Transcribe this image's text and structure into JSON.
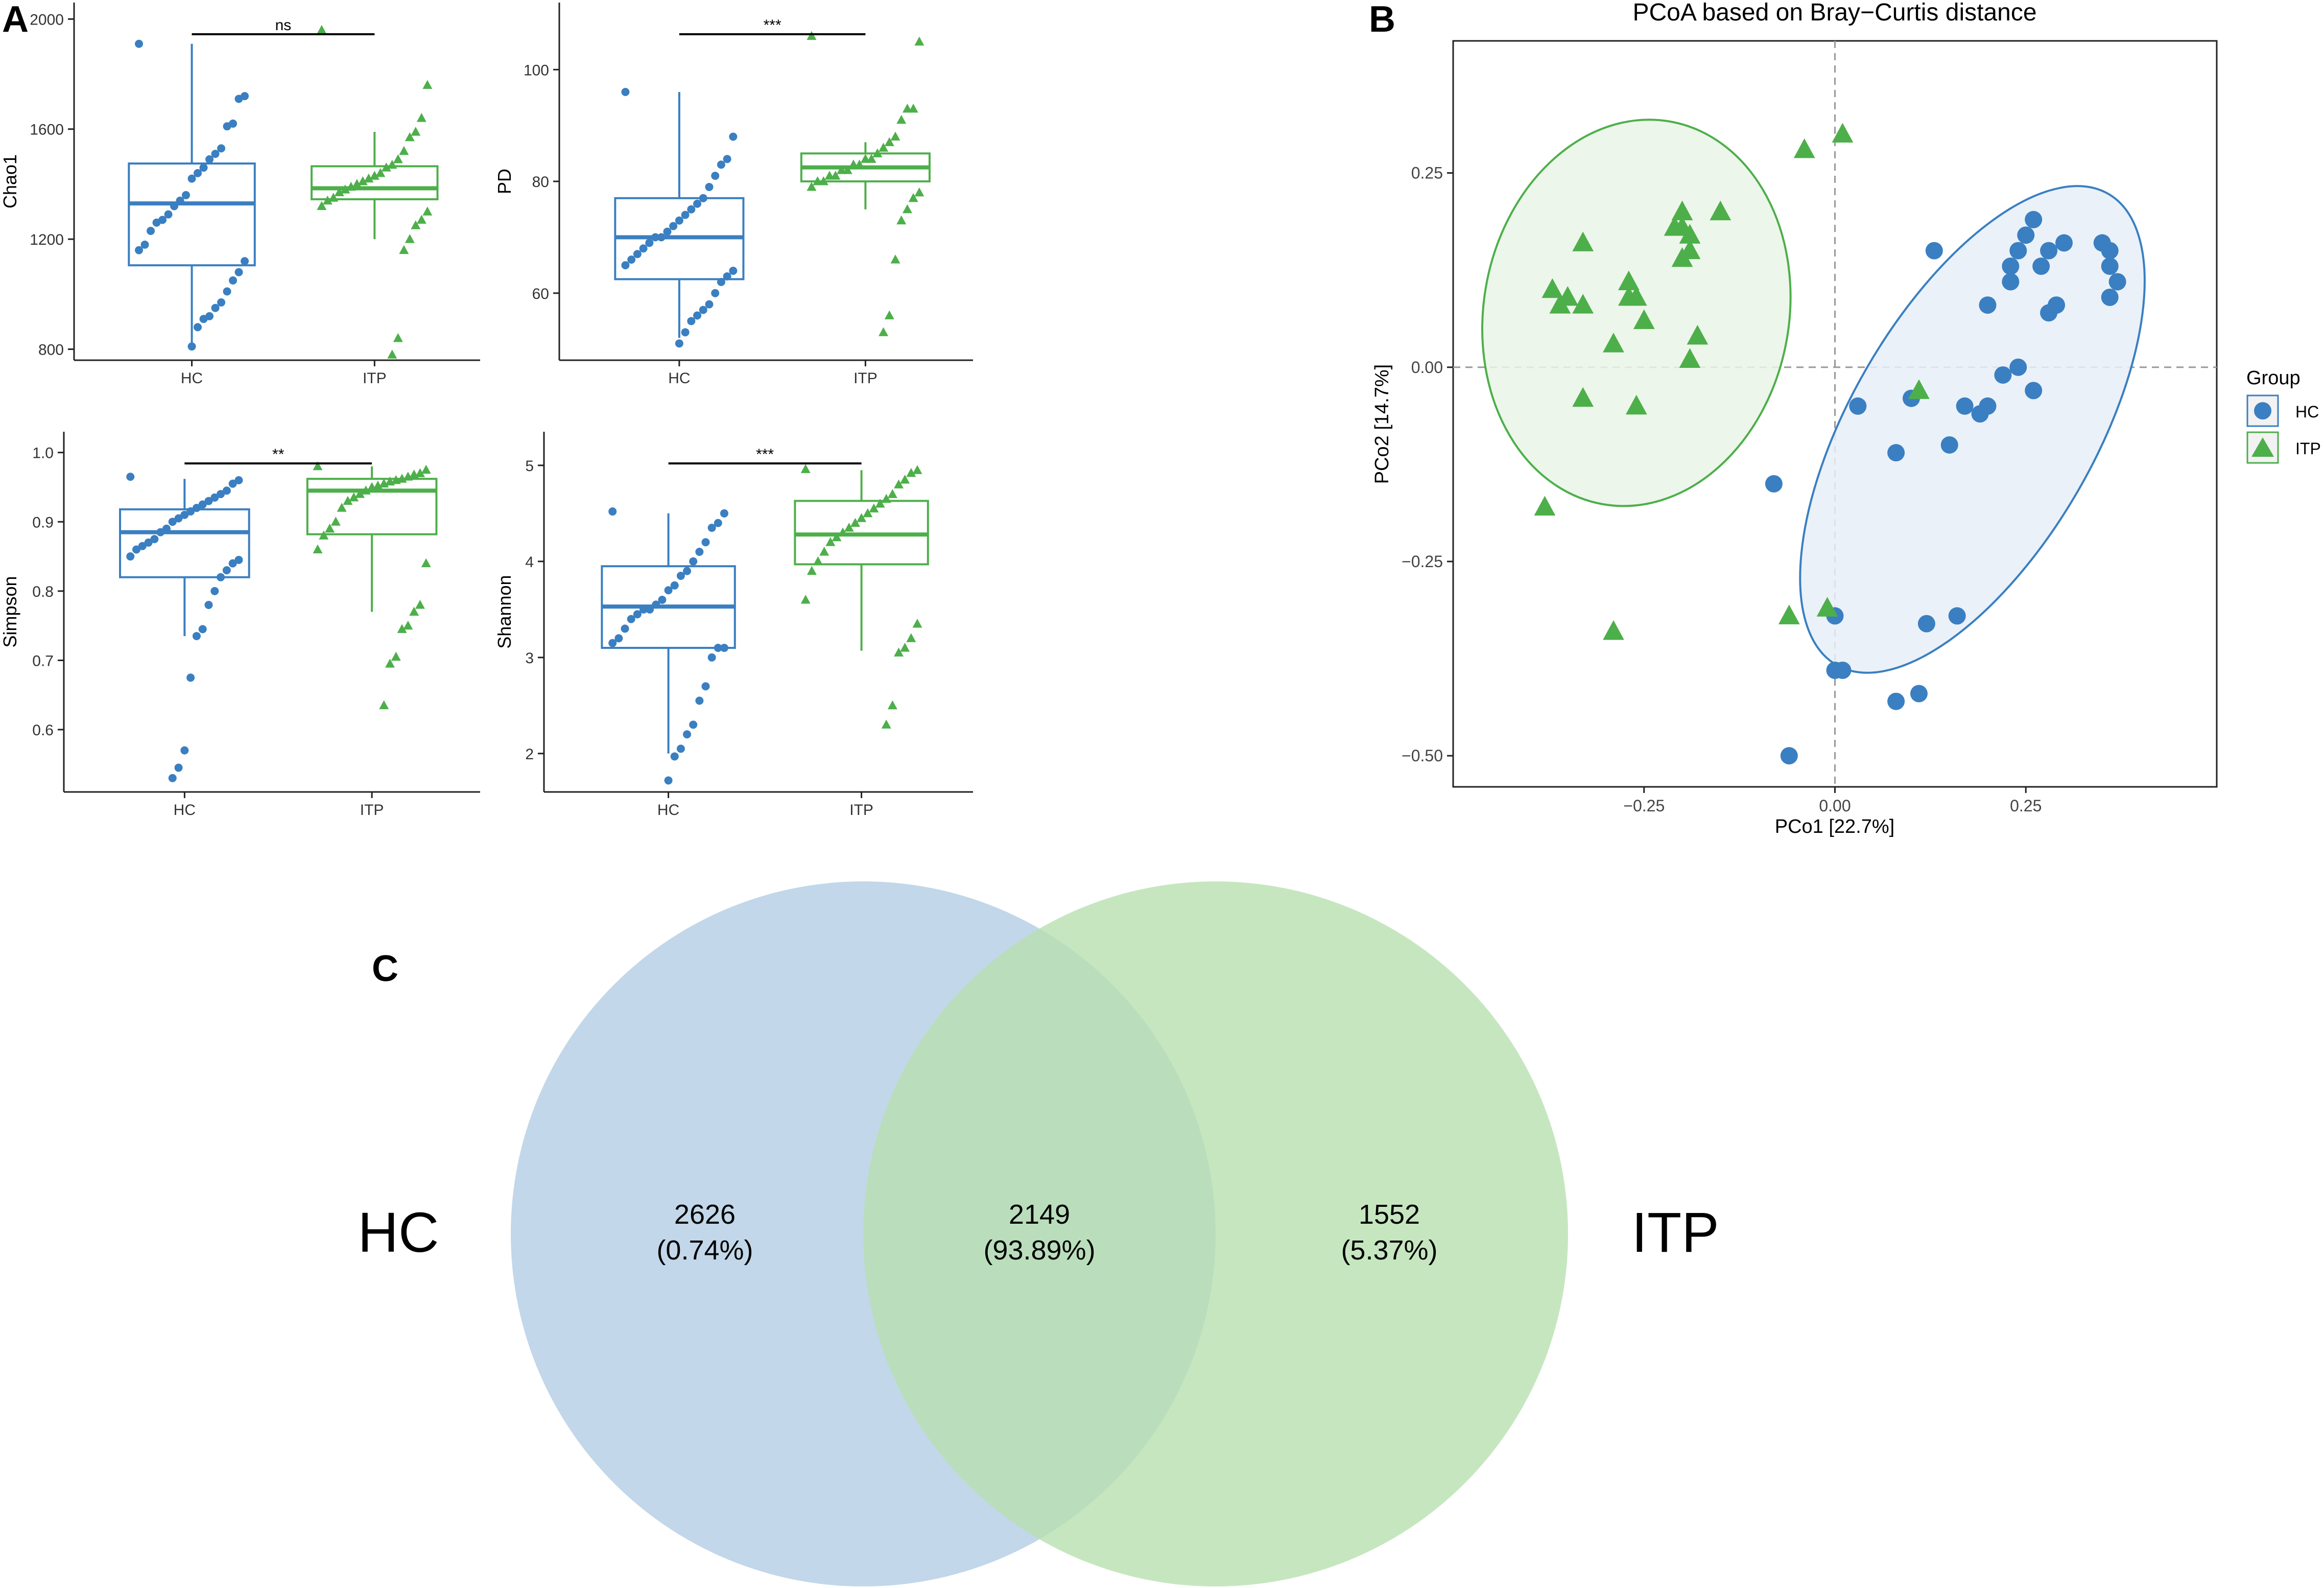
{
  "panel_labels": {
    "a": "A",
    "b": "B",
    "c": "C"
  },
  "colors": {
    "hc": "#3a7fc1",
    "itp": "#4daf4a",
    "axis": "#222222",
    "text": "#000000",
    "grid_dash": "#999999",
    "venn_hc": "#b3cde3",
    "venn_itp": "#b8e0b0",
    "venn_overlap": "#9ccbb4"
  },
  "chart_data": [
    {
      "id": "chao1",
      "type": "box",
      "ylabel": "Chao1",
      "categories": [
        "HC",
        "ITP"
      ],
      "ylim": [
        760,
        2060
      ],
      "yticks": [
        800,
        1200,
        1600,
        2000
      ],
      "significance": "ns",
      "boxes": [
        {
          "group": "HC",
          "min": 810,
          "q1": 1105,
          "median": 1330,
          "q3": 1475,
          "max": 1910
        },
        {
          "group": "ITP",
          "min": 1200,
          "q1": 1345,
          "median": 1385,
          "q3": 1465,
          "max": 1590
        }
      ],
      "points": {
        "HC": [
          1910,
          1720,
          1710,
          1620,
          1610,
          1530,
          1510,
          1490,
          1460,
          1440,
          1420,
          1360,
          1340,
          1320,
          1290,
          1270,
          1260,
          1230,
          1180,
          1160,
          1120,
          1080,
          1050,
          1010,
          970,
          950,
          920,
          910,
          880,
          810
        ],
        "ITP": [
          1960,
          1760,
          1640,
          1590,
          1570,
          1520,
          1490,
          1470,
          1460,
          1440,
          1430,
          1420,
          1410,
          1400,
          1390,
          1380,
          1370,
          1350,
          1340,
          1320,
          1300,
          1270,
          1250,
          1200,
          1160,
          840,
          780
        ]
      }
    },
    {
      "id": "pd",
      "type": "box",
      "ylabel": "PD",
      "categories": [
        "HC",
        "ITP"
      ],
      "ylim": [
        48,
        112
      ],
      "yticks": [
        60,
        80,
        100
      ],
      "significance": "***",
      "boxes": [
        {
          "group": "HC",
          "min": 52,
          "q1": 62.5,
          "median": 70,
          "q3": 77,
          "max": 96
        },
        {
          "group": "ITP",
          "min": 75,
          "q1": 80,
          "median": 82.5,
          "q3": 85,
          "max": 87
        }
      ],
      "points": {
        "HC": [
          96,
          88,
          84,
          83,
          81,
          79,
          77,
          76,
          75,
          74,
          73,
          72,
          71,
          70,
          70,
          69,
          68,
          67,
          66,
          65,
          64,
          63,
          62,
          60,
          58,
          57,
          56,
          55,
          53,
          51
        ],
        "ITP": [
          106,
          105,
          93,
          93,
          91,
          88,
          87,
          86,
          85,
          84,
          84,
          83,
          83,
          82,
          82,
          81,
          81,
          80,
          80,
          79,
          78,
          77,
          75,
          73,
          66,
          56,
          53
        ]
      }
    },
    {
      "id": "simpson",
      "type": "box",
      "ylabel": "Simpson",
      "categories": [
        "HC",
        "ITP"
      ],
      "ylim": [
        0.51,
        1.03
      ],
      "yticks": [
        0.6,
        0.7,
        0.8,
        0.9,
        1.0
      ],
      "significance": "**",
      "boxes": [
        {
          "group": "HC",
          "min": 0.735,
          "q1": 0.82,
          "median": 0.885,
          "q3": 0.918,
          "max": 0.962
        },
        {
          "group": "ITP",
          "min": 0.77,
          "q1": 0.882,
          "median": 0.945,
          "q3": 0.962,
          "max": 0.98
        }
      ],
      "points": {
        "HC": [
          0.965,
          0.96,
          0.955,
          0.945,
          0.94,
          0.935,
          0.93,
          0.925,
          0.92,
          0.915,
          0.91,
          0.905,
          0.9,
          0.89,
          0.885,
          0.875,
          0.87,
          0.865,
          0.86,
          0.85,
          0.845,
          0.84,
          0.83,
          0.82,
          0.8,
          0.78,
          0.745,
          0.735,
          0.675,
          0.57,
          0.545,
          0.53
        ],
        "ITP": [
          0.98,
          0.975,
          0.97,
          0.968,
          0.965,
          0.962,
          0.96,
          0.958,
          0.955,
          0.952,
          0.95,
          0.945,
          0.94,
          0.935,
          0.93,
          0.92,
          0.9,
          0.89,
          0.88,
          0.86,
          0.84,
          0.78,
          0.77,
          0.75,
          0.745,
          0.705,
          0.695,
          0.635
        ]
      }
    },
    {
      "id": "shannon",
      "type": "box",
      "ylabel": "Shannon",
      "categories": [
        "HC",
        "ITP"
      ],
      "ylim": [
        1.6,
        5.35
      ],
      "yticks": [
        2,
        3,
        4,
        5
      ],
      "significance": "***",
      "boxes": [
        {
          "group": "HC",
          "min": 2.0,
          "q1": 3.1,
          "median": 3.53,
          "q3": 3.95,
          "max": 4.5
        },
        {
          "group": "ITP",
          "min": 3.07,
          "q1": 3.97,
          "median": 4.28,
          "q3": 4.63,
          "max": 4.95
        }
      ],
      "points": {
        "HC": [
          4.52,
          4.5,
          4.4,
          4.35,
          4.2,
          4.1,
          4.0,
          3.9,
          3.85,
          3.75,
          3.7,
          3.6,
          3.55,
          3.5,
          3.5,
          3.45,
          3.4,
          3.3,
          3.2,
          3.15,
          3.1,
          3.1,
          3.0,
          2.7,
          2.55,
          2.3,
          2.2,
          2.05,
          1.97,
          1.72
        ],
        "ITP": [
          4.96,
          4.95,
          4.92,
          4.85,
          4.8,
          4.7,
          4.65,
          4.6,
          4.55,
          4.5,
          4.45,
          4.4,
          4.35,
          4.3,
          4.25,
          4.2,
          4.1,
          4.0,
          3.9,
          3.6,
          3.35,
          3.2,
          3.1,
          3.05,
          2.5,
          2.3
        ]
      }
    },
    {
      "id": "pcoa",
      "type": "scatter",
      "title": "PCoA based on Bray−Curtis distance",
      "xlabel": "PCo1 [22.7%]",
      "ylabel": "PCo2 [14.7%]",
      "xlim": [
        -0.5,
        0.5
      ],
      "ylim": [
        -0.54,
        0.42
      ],
      "xticks": [
        -0.25,
        0.0,
        0.25
      ],
      "yticks": [
        -0.5,
        -0.25,
        0.0,
        0.25
      ],
      "tick_labels": {
        "-0.5": "−0.50",
        "-0.25": "−0.25",
        "0": "0.00",
        "0.25": "0.25"
      },
      "legend": {
        "title": "Group",
        "position": "right",
        "items": [
          "HC",
          "ITP"
        ]
      },
      "series": [
        {
          "name": "HC",
          "shape": "circle",
          "x": [
            0.26,
            0.25,
            0.3,
            0.35,
            0.36,
            0.36,
            0.24,
            0.28,
            0.23,
            0.27,
            0.29,
            0.23,
            0.2,
            0.37,
            0.28,
            0.36,
            0.13,
            0.24,
            0.22,
            0.26,
            0.17,
            0.2,
            0.19,
            0.1,
            0.03,
            0.15,
            0.08,
            0.0,
            0.12,
            0.16,
            0.0,
            0.01,
            -0.08,
            0.11,
            0.08,
            -0.06
          ],
          "y": [
            0.19,
            0.17,
            0.16,
            0.16,
            0.15,
            0.13,
            0.15,
            0.15,
            0.13,
            0.13,
            0.08,
            0.11,
            0.08,
            0.11,
            0.07,
            0.09,
            0.15,
            0.0,
            -0.01,
            -0.03,
            -0.05,
            -0.05,
            -0.06,
            -0.04,
            -0.05,
            -0.1,
            -0.11,
            -0.32,
            -0.33,
            -0.32,
            -0.39,
            -0.39,
            -0.15,
            -0.42,
            -0.43,
            -0.5
          ]
        },
        {
          "name": "ITP",
          "shape": "triangle",
          "x": [
            -0.15,
            -0.2,
            -0.2,
            -0.19,
            -0.2,
            -0.19,
            -0.21,
            -0.33,
            -0.35,
            -0.33,
            -0.36,
            -0.37,
            -0.27,
            -0.26,
            -0.25,
            -0.27,
            -0.29,
            -0.18,
            -0.19,
            -0.33,
            -0.26,
            -0.38,
            -0.29,
            -0.04,
            0.01,
            0.11,
            -0.06,
            -0.01
          ],
          "y": [
            0.2,
            0.2,
            0.18,
            0.17,
            0.14,
            0.15,
            0.18,
            0.16,
            0.09,
            0.08,
            0.08,
            0.1,
            0.11,
            0.09,
            0.06,
            0.09,
            0.03,
            0.04,
            0.01,
            -0.04,
            -0.05,
            -0.18,
            -0.34,
            0.28,
            0.3,
            -0.03,
            -0.32,
            -0.31
          ]
        }
      ],
      "ellipses": [
        {
          "group": "HC",
          "cx": 0.18,
          "cy": -0.08,
          "rx": 0.16,
          "ry": 0.35,
          "rotation_deg": 30
        },
        {
          "group": "ITP",
          "cx": -0.26,
          "cy": 0.07,
          "rx": 0.2,
          "ry": 0.25,
          "rotation_deg": 10
        }
      ]
    },
    {
      "id": "venn",
      "type": "venn",
      "sets": [
        {
          "name": "HC",
          "unique": "2626",
          "percent": "(0.74%)"
        },
        {
          "name": "ITP",
          "unique": "1552",
          "percent": "(5.37%)"
        }
      ],
      "overlap": {
        "value": "2149",
        "percent": "(93.89%)"
      }
    }
  ]
}
